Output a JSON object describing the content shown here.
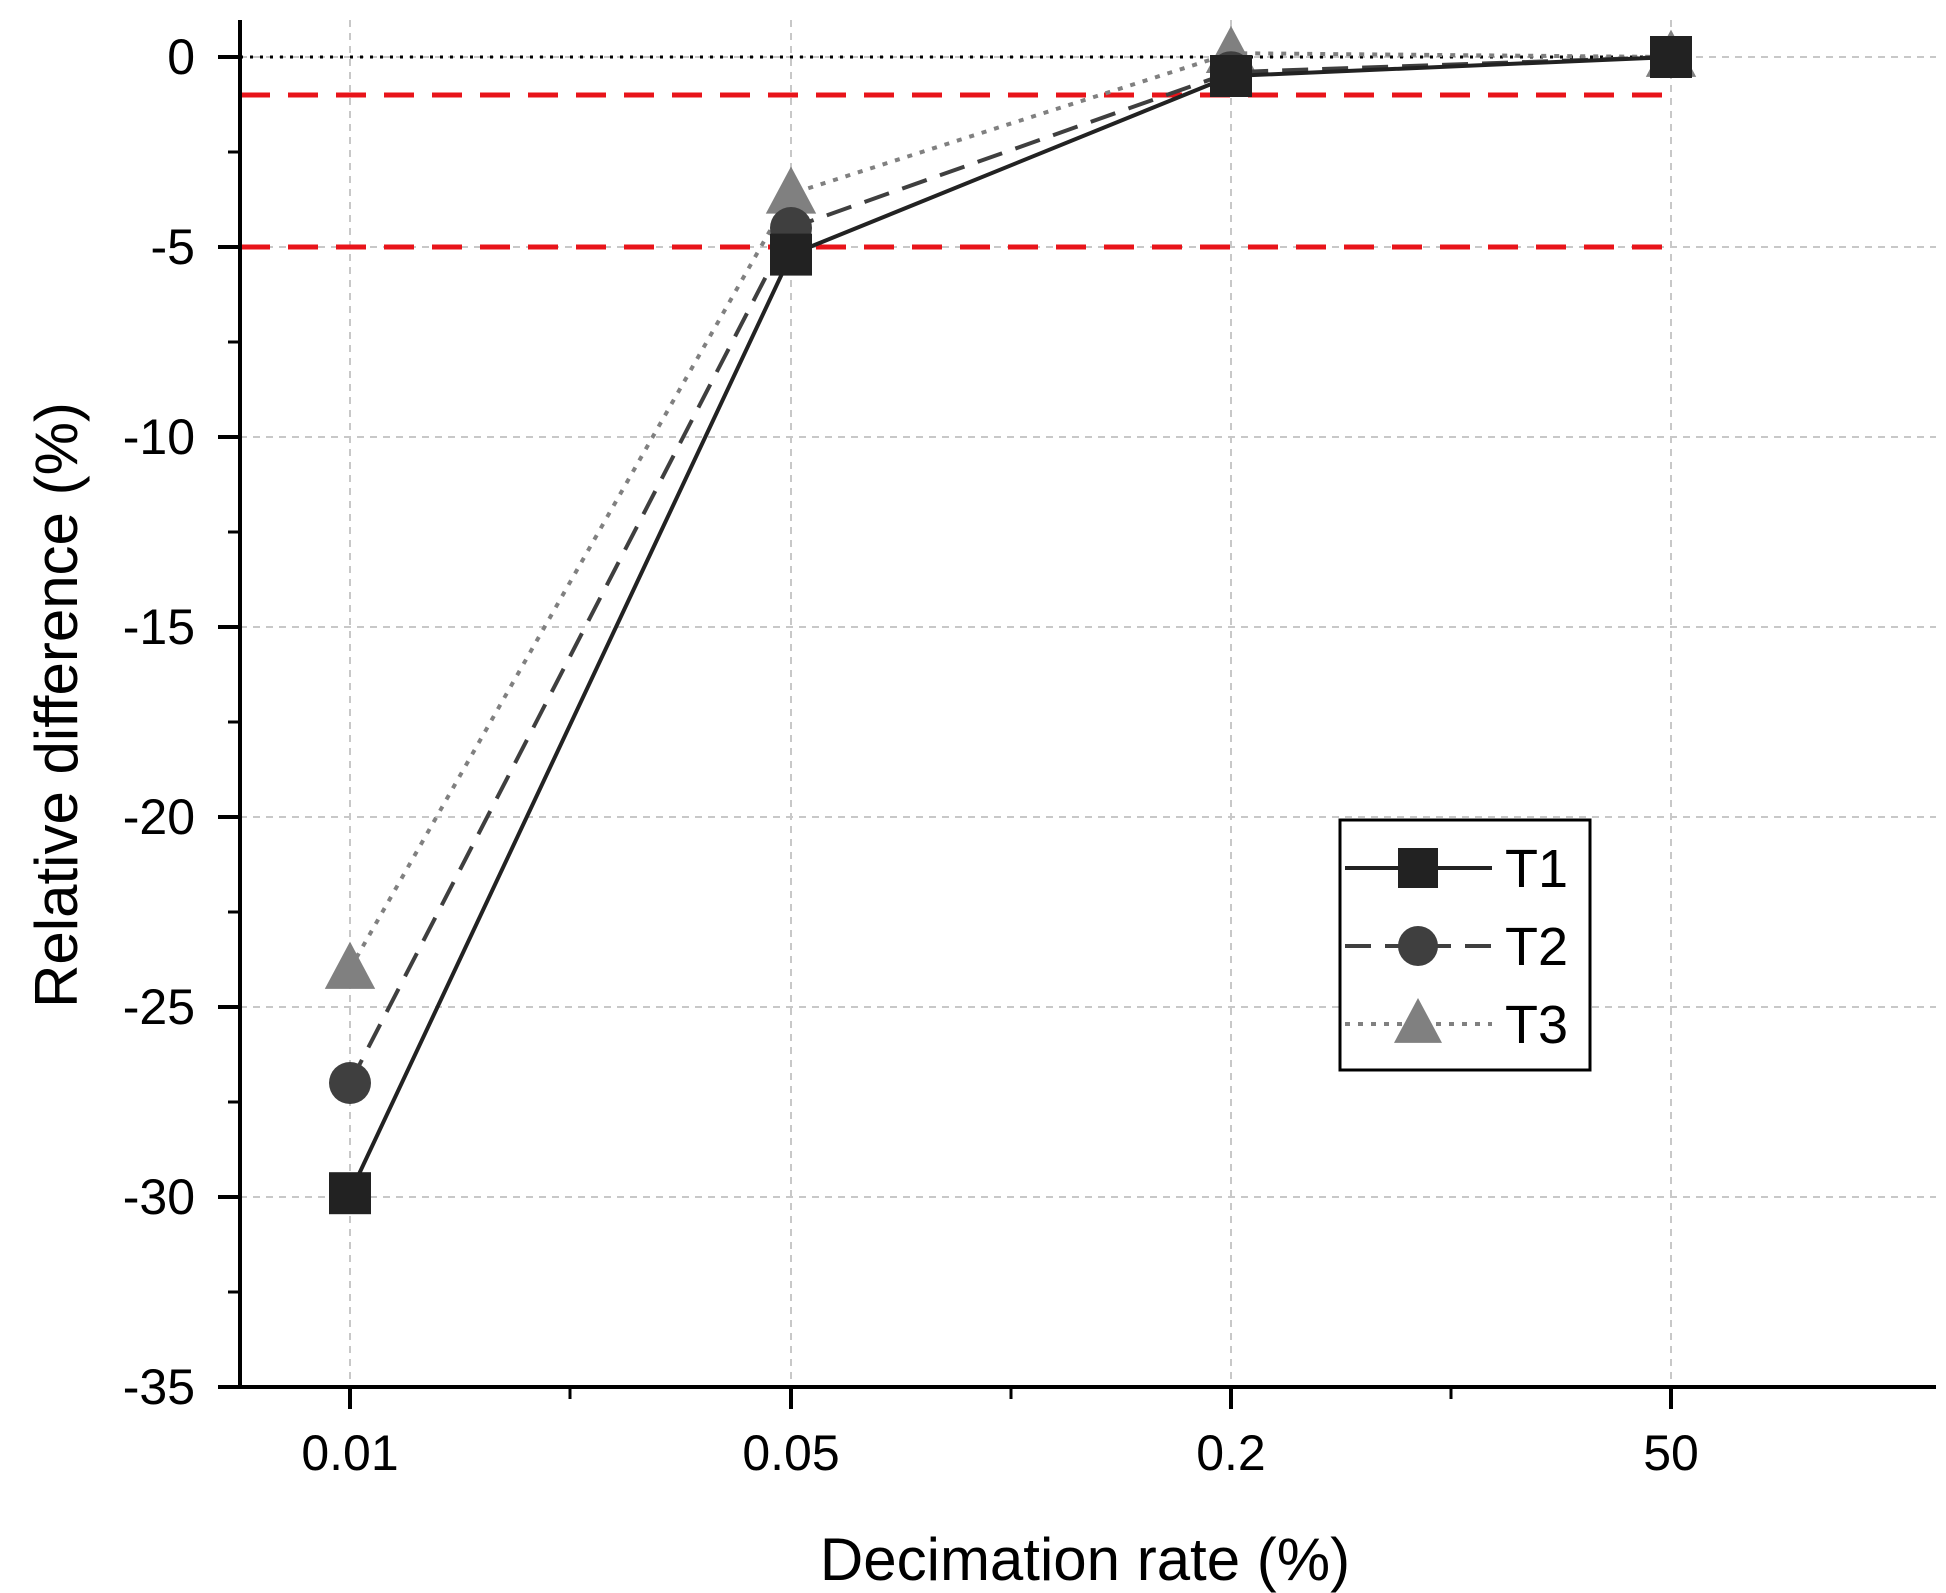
{
  "chart_data": {
    "type": "line",
    "title": "",
    "xlabel": "Decimation rate (%)",
    "ylabel": "Relative difference (%)",
    "categories": [
      "0.01",
      "0.05",
      "0.2",
      "50"
    ],
    "ylim": [
      -35,
      1
    ],
    "yticks": [
      0,
      -5,
      -10,
      -15,
      -20,
      -25,
      -30,
      -35
    ],
    "ytick_labels": [
      "0",
      "-5",
      "-10",
      "-15",
      "-20",
      "-25",
      "-30",
      "-35"
    ],
    "grid": true,
    "series": [
      {
        "name": "T1",
        "values": [
          -29.9,
          -5.2,
          -0.5,
          0
        ],
        "line_style": "solid",
        "marker": "square",
        "color": "#222222"
      },
      {
        "name": "T2",
        "values": [
          -27.0,
          -4.5,
          -0.4,
          0
        ],
        "line_style": "dashed",
        "marker": "circle",
        "color": "#3f3f3f"
      },
      {
        "name": "T3",
        "values": [
          -24.0,
          -3.6,
          0.1,
          0
        ],
        "line_style": "dotted",
        "marker": "triangle",
        "color": "#808080"
      }
    ],
    "reference_lines": [
      {
        "y": 0,
        "style": "dotted",
        "color": "#000000"
      },
      {
        "y": -1,
        "style": "dashed",
        "color": "#e8141a"
      },
      {
        "y": -5,
        "style": "dashed",
        "color": "#e8141a"
      }
    ],
    "legend_position": "center-right"
  }
}
